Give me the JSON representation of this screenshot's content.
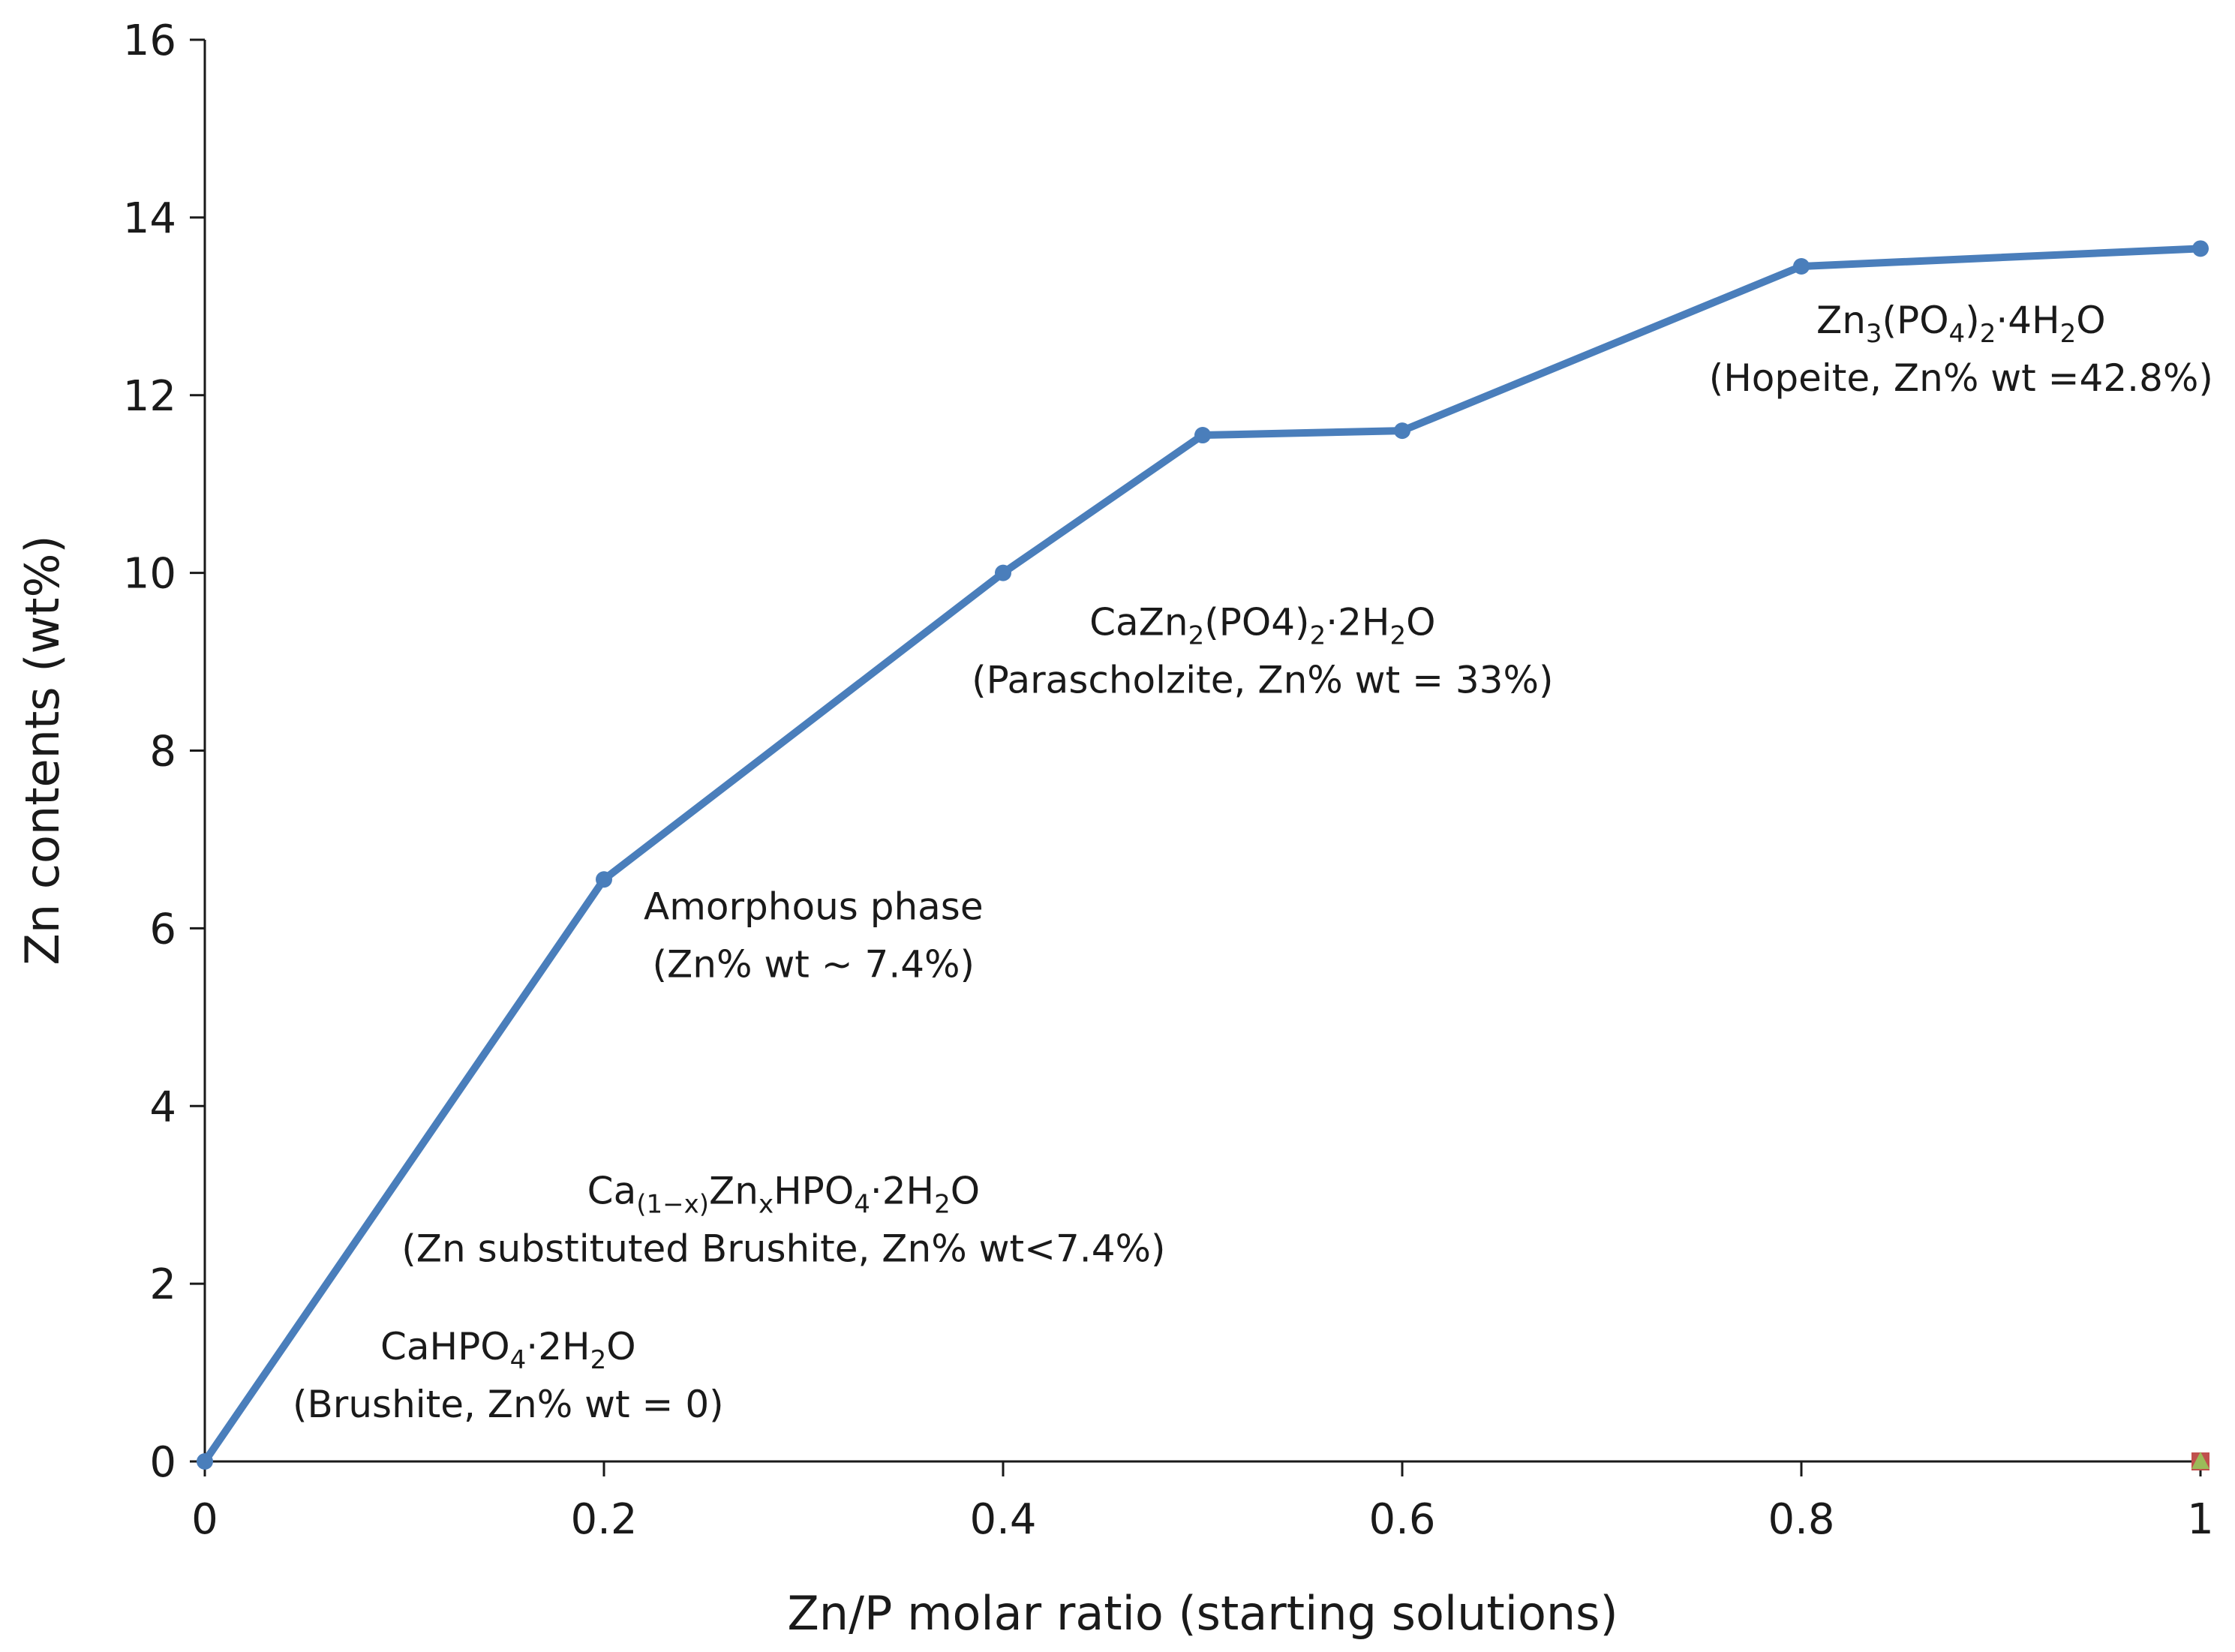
{
  "chart_data": {
    "type": "line",
    "xlabel": "Zn/P molar ratio (starting solutions)",
    "ylabel": "Zn contents (wt%)",
    "xlim": [
      0,
      1
    ],
    "ylim": [
      0,
      16
    ],
    "xticks": [
      0,
      0.2,
      0.4,
      0.6,
      0.8,
      1
    ],
    "xtick_labels": [
      "0",
      "0.2",
      "0.4",
      "0.6",
      "0.8",
      "1"
    ],
    "yticks": [
      0,
      2,
      4,
      6,
      8,
      10,
      12,
      14,
      16
    ],
    "ytick_labels": [
      "0",
      "2",
      "4",
      "6",
      "8",
      "10",
      "12",
      "14",
      "16"
    ],
    "grid": false,
    "series": [
      {
        "name": "Zn contents",
        "color": "#4a7ebb",
        "x": [
          0,
          0.2,
          0.4,
          0.5,
          0.6,
          0.8,
          1.0
        ],
        "y": [
          0,
          6.55,
          10.0,
          11.55,
          11.6,
          13.45,
          13.65
        ]
      }
    ],
    "extra_markers": [
      {
        "shape": "square",
        "x": 1.0,
        "y": 0,
        "color": "#c0504d"
      },
      {
        "shape": "triangle",
        "x": 1.0,
        "y": 0,
        "color": "#9bbb59"
      }
    ],
    "annotations": [
      {
        "id": "hopeite",
        "at": [
          0.88,
          12.7
        ],
        "lines": [
          [
            [
              "Zn",
              ""
            ],
            [
              "3",
              "sub"
            ],
            [
              "(PO",
              ""
            ],
            [
              "4",
              "sub"
            ],
            [
              ")",
              ""
            ],
            [
              "2",
              "sub"
            ],
            [
              "·4H",
              ""
            ],
            [
              "2",
              "sub"
            ],
            [
              "O",
              ""
            ]
          ],
          [
            [
              "(Hopeite, Zn% wt =42.8%)",
              ""
            ]
          ]
        ]
      },
      {
        "id": "parascholzite",
        "at": [
          0.53,
          9.3
        ],
        "lines": [
          [
            [
              "CaZn",
              ""
            ],
            [
              "2",
              "sub"
            ],
            [
              "(PO4)",
              ""
            ],
            [
              "2",
              "sub"
            ],
            [
              "·2H",
              ""
            ],
            [
              "2",
              "sub"
            ],
            [
              "O",
              ""
            ]
          ],
          [
            [
              "(Parascholzite, Zn% wt = 33%)",
              ""
            ]
          ]
        ]
      },
      {
        "id": "amorphous",
        "at": [
          0.305,
          6.1
        ],
        "lines": [
          [
            [
              "Amorphous phase",
              ""
            ]
          ],
          [
            [
              "(Zn% wt ~ 7.4%)",
              ""
            ]
          ]
        ]
      },
      {
        "id": "zn-brushite",
        "at": [
          0.29,
          2.9
        ],
        "lines": [
          [
            [
              "Ca",
              ""
            ],
            [
              "(1−x)",
              "sub"
            ],
            [
              "Zn",
              ""
            ],
            [
              "x",
              "sub"
            ],
            [
              "HPO",
              ""
            ],
            [
              "4",
              "sub"
            ],
            [
              "·2H",
              ""
            ],
            [
              "2",
              "sub"
            ],
            [
              "O",
              ""
            ]
          ],
          [
            [
              "(Zn substituted Brushite, Zn% wt<7.4%)",
              ""
            ]
          ]
        ]
      },
      {
        "id": "brushite",
        "at": [
          0.152,
          1.15
        ],
        "lines": [
          [
            [
              "CaHPO",
              ""
            ],
            [
              "4",
              "sub"
            ],
            [
              "·2H",
              ""
            ],
            [
              "2",
              "sub"
            ],
            [
              "O",
              ""
            ]
          ],
          [
            [
              "(Brushite, Zn% wt = 0)",
              ""
            ]
          ]
        ]
      }
    ]
  }
}
